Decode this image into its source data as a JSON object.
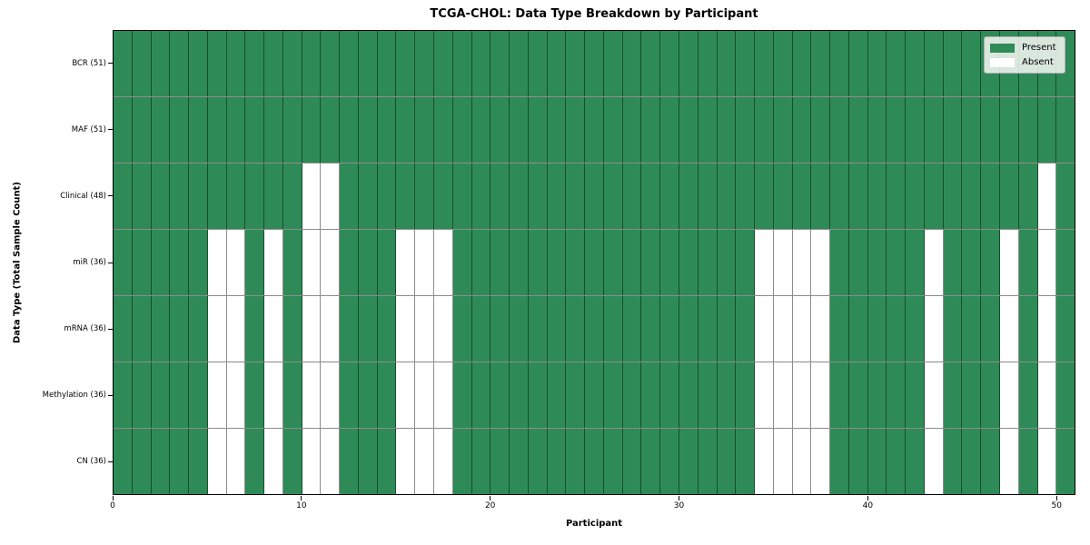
{
  "title": "TCGA-CHOL: Data Type Breakdown by Participant",
  "chart_data": {
    "type": "heatmap",
    "title": "TCGA-CHOL: Data Type Breakdown by Participant",
    "xlabel": "Participant",
    "ylabel": "Data Type (Total Sample Count)",
    "n_participants": 51,
    "x_range": [
      0,
      51
    ],
    "x_ticks": [
      0,
      10,
      20,
      30,
      40,
      50
    ],
    "grid": true,
    "legend_position": "upper right",
    "legend": [
      {
        "label": "Present",
        "color": "#2e8b57"
      },
      {
        "label": "Absent",
        "color": "#ffffff"
      }
    ],
    "colors": {
      "present": "#2e8b57",
      "absent": "#ffffff",
      "cell_edge": "rgba(0,0,0,0.45)",
      "frame": "#000000"
    },
    "rows": [
      {
        "label": "BCR (51)",
        "data_type": "BCR",
        "present_count": 51,
        "absent_participants": []
      },
      {
        "label": "MAF (51)",
        "data_type": "MAF",
        "present_count": 51,
        "absent_participants": []
      },
      {
        "label": "Clinical (48)",
        "data_type": "Clinical",
        "present_count": 48,
        "absent_participants": [
          10,
          11,
          49
        ]
      },
      {
        "label": "miR (36)",
        "data_type": "miR",
        "present_count": 36,
        "absent_participants": [
          5,
          6,
          8,
          10,
          11,
          15,
          16,
          17,
          34,
          35,
          36,
          37,
          43,
          47,
          49
        ]
      },
      {
        "label": "mRNA (36)",
        "data_type": "mRNA",
        "present_count": 36,
        "absent_participants": [
          5,
          6,
          8,
          10,
          11,
          15,
          16,
          17,
          34,
          35,
          36,
          37,
          43,
          47,
          49
        ]
      },
      {
        "label": "Methylation (36)",
        "data_type": "Methylation",
        "present_count": 36,
        "absent_participants": [
          5,
          6,
          8,
          10,
          11,
          15,
          16,
          17,
          34,
          35,
          36,
          37,
          43,
          47,
          49
        ]
      },
      {
        "label": "CN (36)",
        "data_type": "CN",
        "present_count": 36,
        "absent_participants": [
          5,
          6,
          8,
          10,
          11,
          15,
          16,
          17,
          34,
          35,
          36,
          37,
          43,
          47,
          49
        ]
      }
    ]
  }
}
